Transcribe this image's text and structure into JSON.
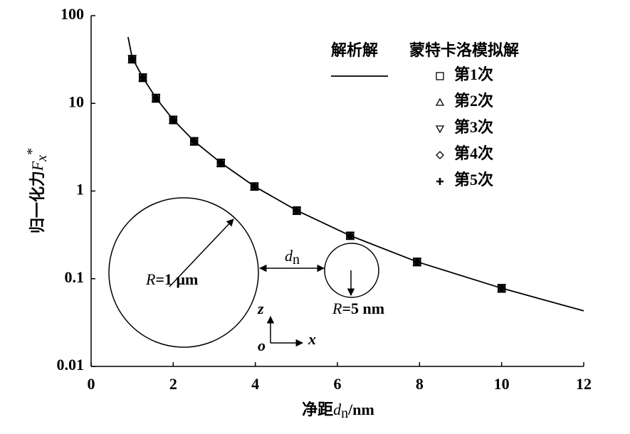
{
  "chart_data": {
    "type": "line",
    "title": null,
    "x_label": {
      "main": "净距",
      "var": "d",
      "sub": "n",
      "unit": "/nm"
    },
    "y_label": {
      "main": "归一化力",
      "var": "F",
      "sub": "x",
      "sup": "*"
    },
    "xlim": [
      0,
      12
    ],
    "xticks": [
      0,
      2,
      4,
      6,
      8,
      10,
      12
    ],
    "ylim": [
      0.01,
      100
    ],
    "yticks": [
      0.01,
      0.1,
      1,
      10,
      100
    ],
    "log_y": true,
    "legend_headers": [
      "解析解",
      "蒙特卡洛模拟解"
    ],
    "line_series": {
      "name": "解析解",
      "color": "#000000",
      "x": [
        0.9,
        1.0,
        1.26,
        1.58,
        2.0,
        2.51,
        3.16,
        3.98,
        5.01,
        6.31,
        7.94,
        10.0,
        12.0
      ],
      "values": [
        57,
        33,
        19.7,
        11.5,
        6.5,
        3.7,
        2.1,
        1.13,
        0.6,
        0.31,
        0.156,
        0.078,
        0.043
      ]
    },
    "x": [
      1.0,
      1.26,
      1.58,
      2.0,
      2.51,
      3.16,
      3.98,
      5.01,
      6.31,
      7.94,
      10.0
    ],
    "series": [
      {
        "name": "第1次",
        "marker": "square",
        "color": "#000000",
        "values": [
          32,
          19.7,
          11.5,
          6.5,
          3.7,
          2.1,
          1.13,
          0.6,
          0.31,
          0.156,
          0.078
        ],
        "errors": [
          3.2,
          2,
          1.2,
          0.65,
          0.37,
          0.21,
          0.11,
          0.06,
          0.03,
          0.016,
          0.008
        ]
      },
      {
        "name": "第2次",
        "marker": "triangle-up",
        "color": "#000000",
        "values": [
          32,
          19.7,
          11.5,
          6.5,
          3.7,
          2.1,
          1.13,
          0.6,
          0.31,
          0.156,
          0.078
        ]
      },
      {
        "name": "第3次",
        "marker": "triangle-down",
        "color": "#000000",
        "values": [
          32,
          19.7,
          11.5,
          6.5,
          3.7,
          2.1,
          1.13,
          0.6,
          0.31,
          0.156,
          0.078
        ]
      },
      {
        "name": "第4次",
        "marker": "diamond",
        "color": "#000000",
        "values": [
          32,
          19.7,
          11.5,
          6.5,
          3.7,
          2.1,
          1.13,
          0.6,
          0.31,
          0.156,
          0.078
        ]
      },
      {
        "name": "第5次",
        "marker": "plus",
        "color": "#000000",
        "values": [
          32,
          19.7,
          11.5,
          6.5,
          3.7,
          2.1,
          1.13,
          0.6,
          0.31,
          0.156,
          0.078
        ]
      }
    ],
    "inset": {
      "big_radius": {
        "var": "R",
        "rest": "=1 μm"
      },
      "gap": {
        "var": "d",
        "sub": "n"
      },
      "small_radius": {
        "var": "R",
        "rest": "=5 nm"
      },
      "axis_z": "z",
      "axis_x": "x",
      "origin": "o"
    }
  }
}
